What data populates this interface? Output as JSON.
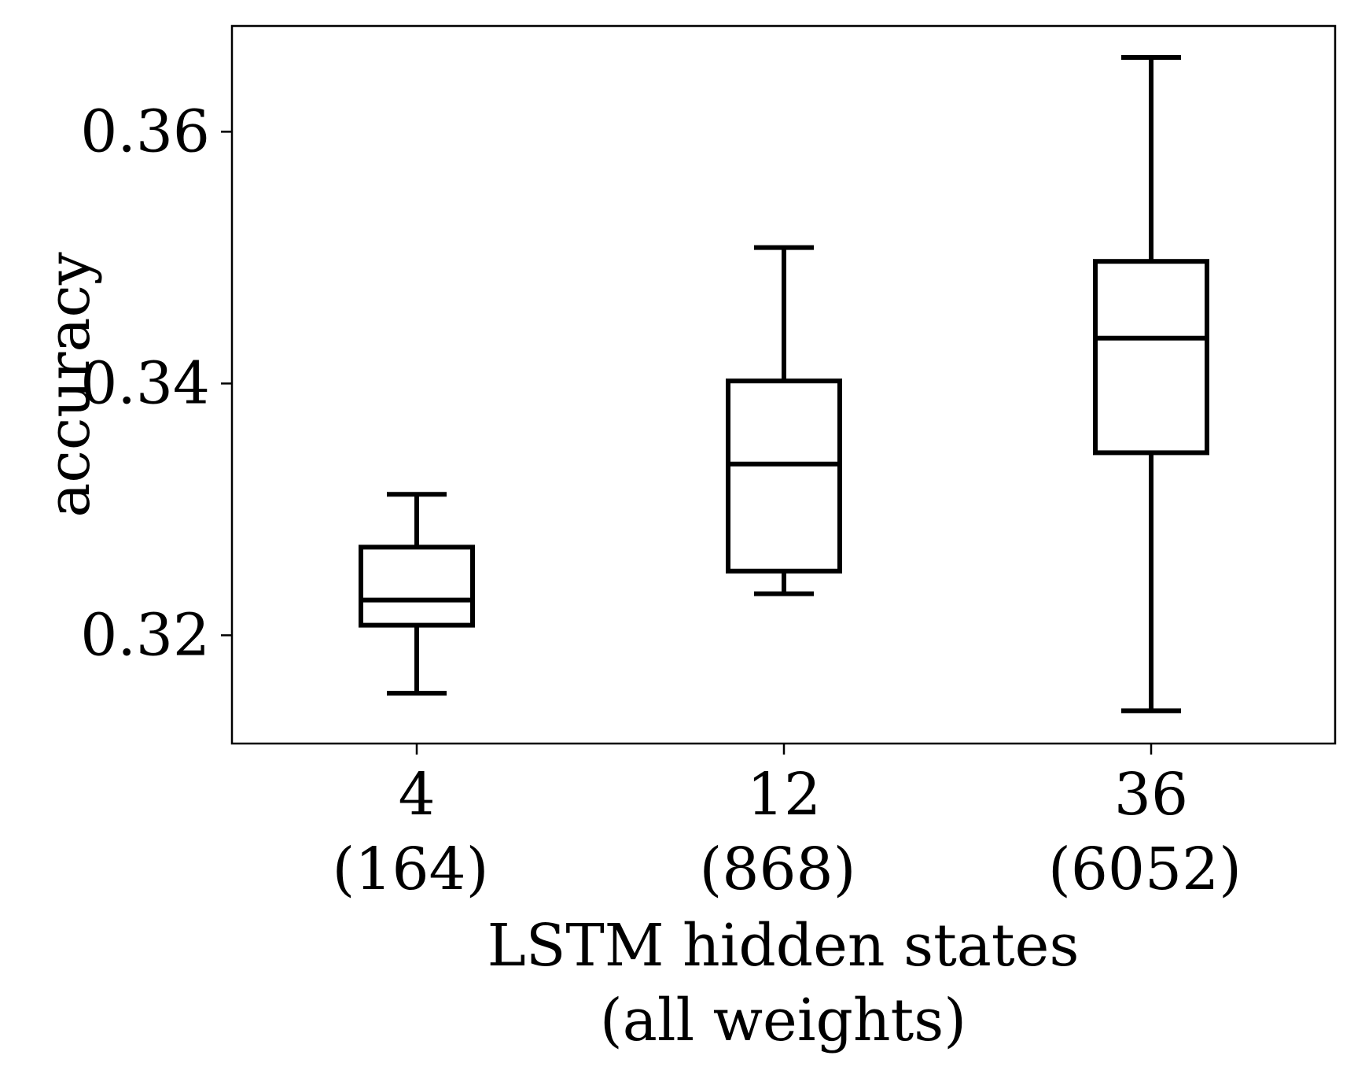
{
  "chart_data": {
    "type": "boxplot",
    "xlabel": [
      "LSTM hidden states",
      "(all weights)"
    ],
    "ylabel": "accuracy",
    "title": "",
    "ylim": [
      0.3114,
      0.3684
    ],
    "yticks": [
      0.32,
      0.34,
      0.36
    ],
    "ytick_labels": [
      "0.32",
      "0.34",
      "0.36"
    ],
    "grid": false,
    "legend": "none",
    "categories": [
      {
        "label": "4",
        "sublabel": "(164)"
      },
      {
        "label": "12",
        "sublabel": "(868)"
      },
      {
        "label": "36",
        "sublabel": "(6052)"
      }
    ],
    "boxes": [
      {
        "whisker_low": 0.3154,
        "q1": 0.3208,
        "median": 0.3228,
        "q3": 0.327,
        "whisker_high": 0.3312
      },
      {
        "whisker_low": 0.3233,
        "q1": 0.3251,
        "median": 0.3336,
        "q3": 0.3402,
        "whisker_high": 0.3508
      },
      {
        "whisker_low": 0.314,
        "q1": 0.3345,
        "median": 0.3436,
        "q3": 0.3497,
        "whisker_high": 0.3659
      }
    ],
    "colors": {
      "stroke": "#000000",
      "background": "#ffffff"
    }
  }
}
